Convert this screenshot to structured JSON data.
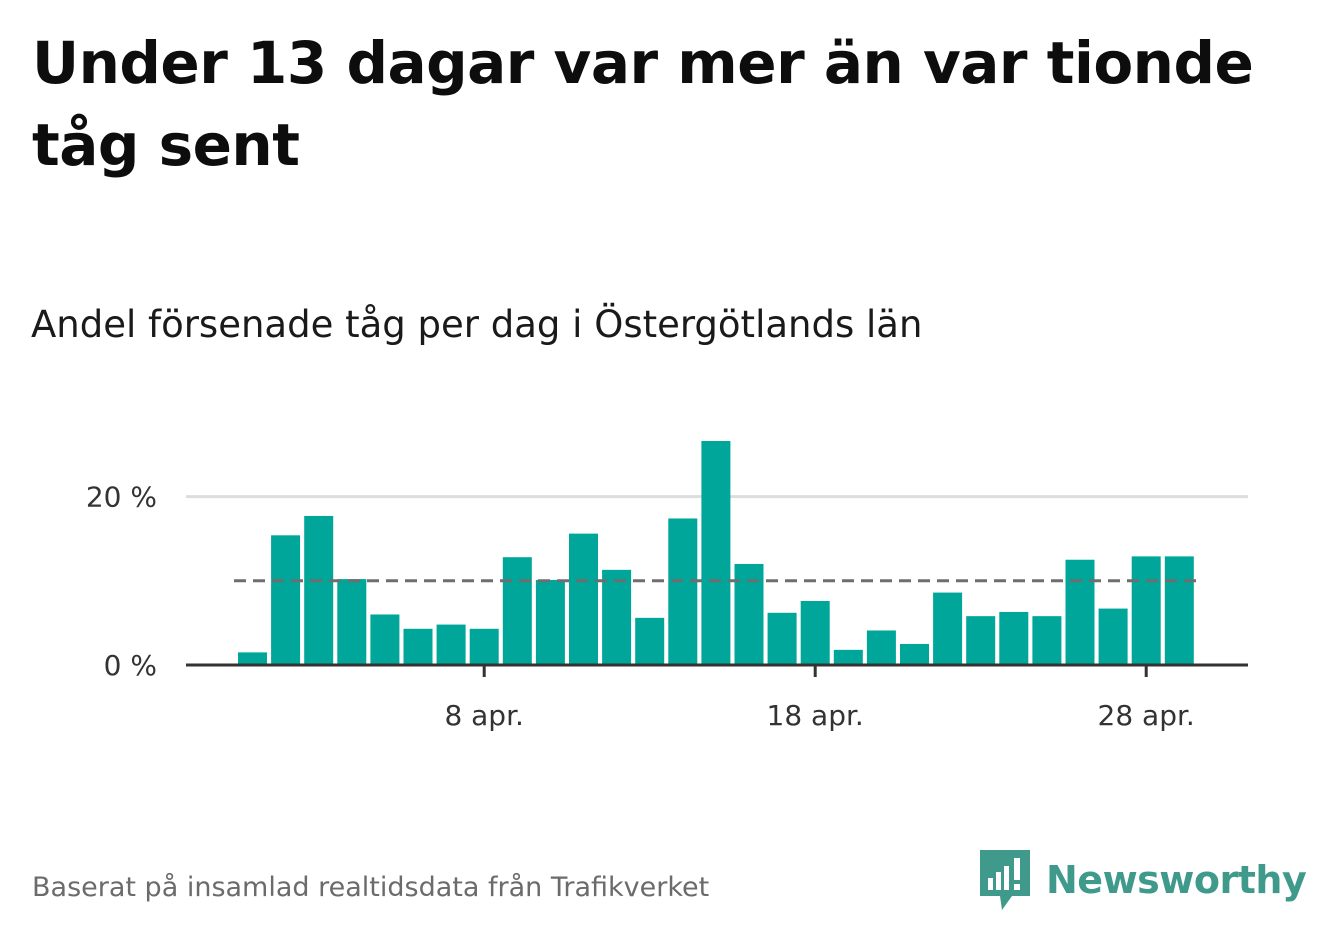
{
  "header": {
    "title": "Under 13 dagar var mer än var tionde tåg sent",
    "subtitle": "Andel försenade tåg per dag i Östergötlands län"
  },
  "footer": {
    "source": "Baserat på insamlad realtidsdata från Trafikverket",
    "logo_text": "Newsworthy"
  },
  "colors": {
    "bar": "#00a699",
    "reference_line": "#6e6e6e",
    "gridline": "#dddddd",
    "axis": "#333333",
    "brand": "#3f9a8c"
  },
  "chart_data": {
    "type": "bar",
    "categories": [
      "1 apr.",
      "2 apr.",
      "3 apr.",
      "4 apr.",
      "5 apr.",
      "6 apr.",
      "7 apr.",
      "8 apr.",
      "9 apr.",
      "10 apr.",
      "11 apr.",
      "12 apr.",
      "13 apr.",
      "14 apr.",
      "15 apr.",
      "16 apr.",
      "17 apr.",
      "18 apr.",
      "19 apr.",
      "20 apr.",
      "21 apr.",
      "22 apr.",
      "23 apr.",
      "24 apr.",
      "25 apr.",
      "26 apr.",
      "27 apr.",
      "28 apr.",
      "29 apr."
    ],
    "values": [
      1.5,
      15.4,
      17.7,
      10.2,
      6.0,
      4.3,
      4.8,
      4.3,
      12.8,
      10.1,
      15.6,
      11.3,
      5.6,
      17.4,
      26.6,
      12.0,
      6.2,
      7.6,
      1.8,
      4.1,
      2.5,
      8.6,
      5.8,
      6.3,
      5.8,
      12.5,
      6.7,
      12.9,
      12.9
    ],
    "reference_line": 10,
    "ylim": [
      0,
      26.6
    ],
    "yticks": [
      {
        "value": 0,
        "label": "0 %"
      },
      {
        "value": 20,
        "label": "20 %"
      }
    ],
    "xticks": [
      {
        "index": 7,
        "label": "8 apr."
      },
      {
        "index": 17,
        "label": "18 apr."
      },
      {
        "index": 27,
        "label": "28 apr."
      }
    ],
    "grid": true,
    "legend": "none"
  }
}
